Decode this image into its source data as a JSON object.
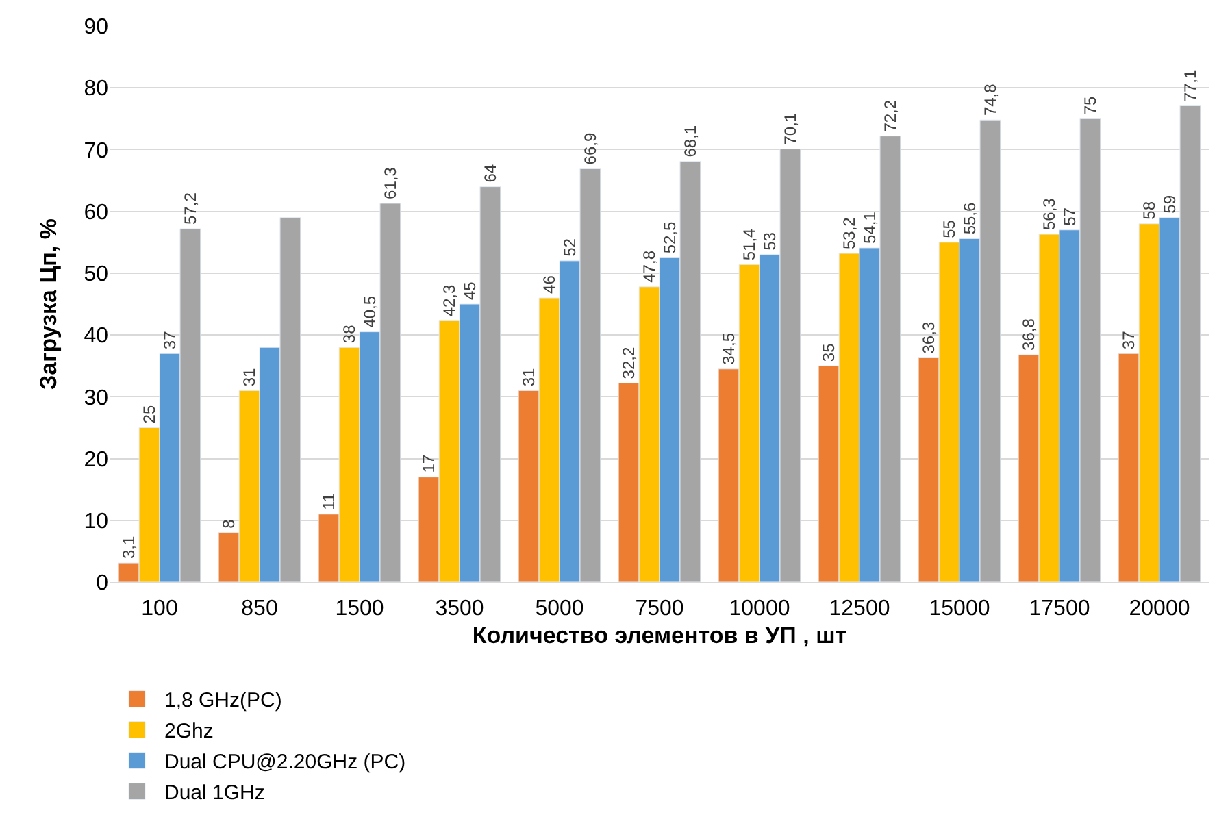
{
  "chart_data": {
    "type": "bar",
    "xlabel": "Количество элементов в УП , шт",
    "ylabel": "Загрузка Цп, %",
    "categories": [
      "100",
      "850",
      "1500",
      "3500",
      "5000",
      "7500",
      "10000",
      "12500",
      "15000",
      "17500",
      "20000"
    ],
    "series": [
      {
        "name": "1,8 GHz(PC)",
        "color": "#ed7d31",
        "values": [
          3.1,
          8,
          11,
          17,
          31,
          32.2,
          34.5,
          35,
          36.3,
          36.8,
          37
        ],
        "value_labels": [
          "3,1",
          "8",
          "11",
          "17",
          "31",
          "32,2",
          "34,5",
          "35",
          "36,3",
          "36,8",
          "37"
        ]
      },
      {
        "name": "2Ghz",
        "color": "#ffc000",
        "values": [
          25,
          31,
          38,
          42.3,
          46,
          47.8,
          51.4,
          53.2,
          55,
          56.3,
          58
        ],
        "value_labels": [
          "25",
          "31",
          "38",
          "42,3",
          "46",
          "47,8",
          "51,4",
          "53,2",
          "55",
          "56,3",
          "58"
        ]
      },
      {
        "name": "Dual CPU@2.20GHz (PC)",
        "color": "#5b9bd5",
        "values": [
          37,
          38,
          40.5,
          45,
          52,
          52.5,
          53,
          54.1,
          55.6,
          57,
          59
        ],
        "value_labels": [
          "37",
          null,
          "40,5",
          "45",
          "52",
          "52,5",
          "53",
          "54,1",
          "55,6",
          "57",
          "59"
        ]
      },
      {
        "name": "Dual 1GHz",
        "color": "#a5a5a5",
        "values": [
          57.2,
          59,
          61.3,
          64,
          66.9,
          68.1,
          70.1,
          72.2,
          74.8,
          75,
          77.1
        ],
        "value_labels": [
          "57,2",
          null,
          "61,3",
          "64",
          "66,9",
          "68,1",
          "70,1",
          "72,2",
          "74,8",
          "75",
          "77,1"
        ]
      }
    ],
    "ylim": [
      0,
      90
    ],
    "yticks": [
      0,
      10,
      20,
      30,
      40,
      50,
      60,
      70,
      80,
      90
    ],
    "grid": "y",
    "legend": "bottom"
  }
}
